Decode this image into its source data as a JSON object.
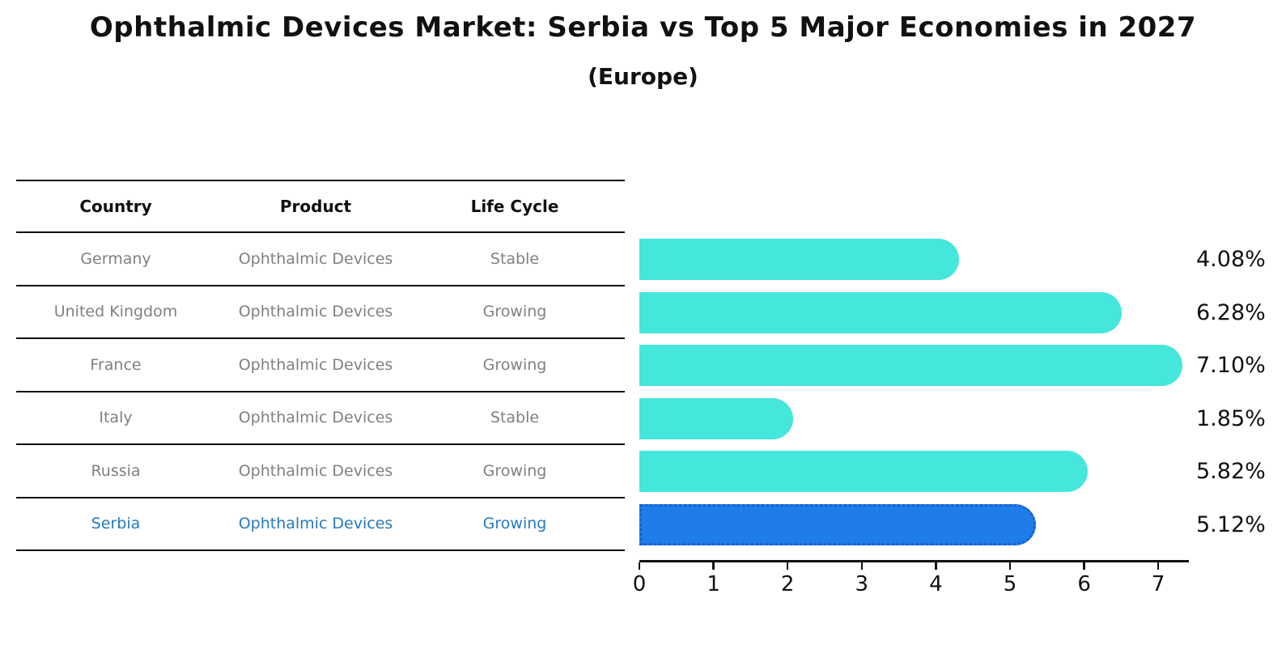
{
  "title": "Ophthalmic Devices Market: Serbia vs Top 5 Major Economies in 2027",
  "subtitle": "(Europe)",
  "table": {
    "headers": [
      "Country",
      "Product",
      "Life Cycle"
    ],
    "rows": [
      {
        "country": "Germany",
        "product": "Ophthalmic Devices",
        "life_cycle": "Stable",
        "highlight": false
      },
      {
        "country": "United Kingdom",
        "product": "Ophthalmic Devices",
        "life_cycle": "Growing",
        "highlight": false
      },
      {
        "country": "France",
        "product": "Ophthalmic Devices",
        "life_cycle": "Growing",
        "highlight": false
      },
      {
        "country": "Italy",
        "product": "Ophthalmic Devices",
        "life_cycle": "Stable",
        "highlight": false
      },
      {
        "country": "Russia",
        "product": "Ophthalmic Devices",
        "life_cycle": "Growing",
        "highlight": false
      },
      {
        "country": "Serbia",
        "product": "Ophthalmic Devices",
        "life_cycle": "Growing",
        "highlight": true
      }
    ]
  },
  "chart_data": {
    "type": "bar",
    "orientation": "horizontal",
    "title": "Ophthalmic Devices Market: Serbia vs Top 5 Major Economies in 2027",
    "subtitle": "(Europe)",
    "categories": [
      "Germany",
      "United Kingdom",
      "France",
      "Italy",
      "Russia",
      "Serbia"
    ],
    "values": [
      4.08,
      6.28,
      7.1,
      1.85,
      5.82,
      5.12
    ],
    "value_labels": [
      "4.08%",
      "6.28%",
      "7.10%",
      "1.85%",
      "5.82%",
      "5.12%"
    ],
    "highlight_category": "Serbia",
    "xlim": [
      0,
      7.4
    ],
    "x_ticks": [
      "0",
      "1",
      "2",
      "3",
      "4",
      "5",
      "6",
      "7"
    ],
    "grid": false,
    "legend": false
  },
  "colors": {
    "bar_color": "#45E6DC",
    "highlight_color": "#1E7DE8",
    "highlight_border": "#1A5ECC",
    "highlight_text": "#2878BE",
    "body_text": "#808080",
    "ink": "#111111"
  }
}
